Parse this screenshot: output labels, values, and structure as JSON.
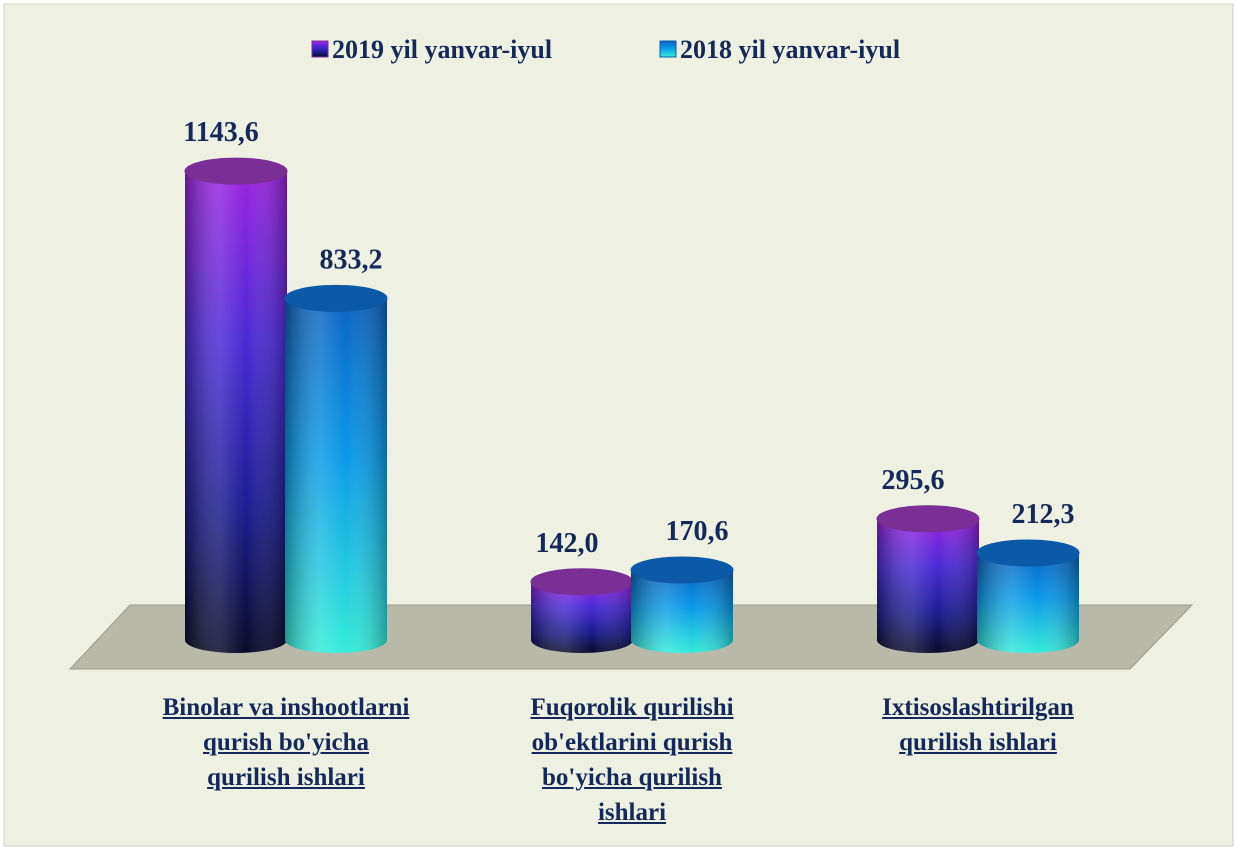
{
  "chart_data": {
    "type": "bar",
    "categories": [
      "Binolar va inshootlarni qurish bo'yicha qurilish ishlari",
      "Fuqorolik qurilishi ob'ektlarini qurish bo'yicha qurilish ishlari",
      "Ixtisoslashtirilgan qurilish ishlari"
    ],
    "series": [
      {
        "name": "2019 yil yanvar-iyul",
        "color": "#7a2f95",
        "values": [
          1143.6,
          142.0,
          295.6
        ],
        "value_labels": [
          "1143,6",
          "142,0",
          "295,6"
        ]
      },
      {
        "name": "2018 yil yanvar-iyul",
        "color": "#0b5aa8",
        "values": [
          833.2,
          170.6,
          212.3
        ],
        "value_labels": [
          "833,2",
          "170,6",
          "212,3"
        ]
      }
    ]
  }
}
